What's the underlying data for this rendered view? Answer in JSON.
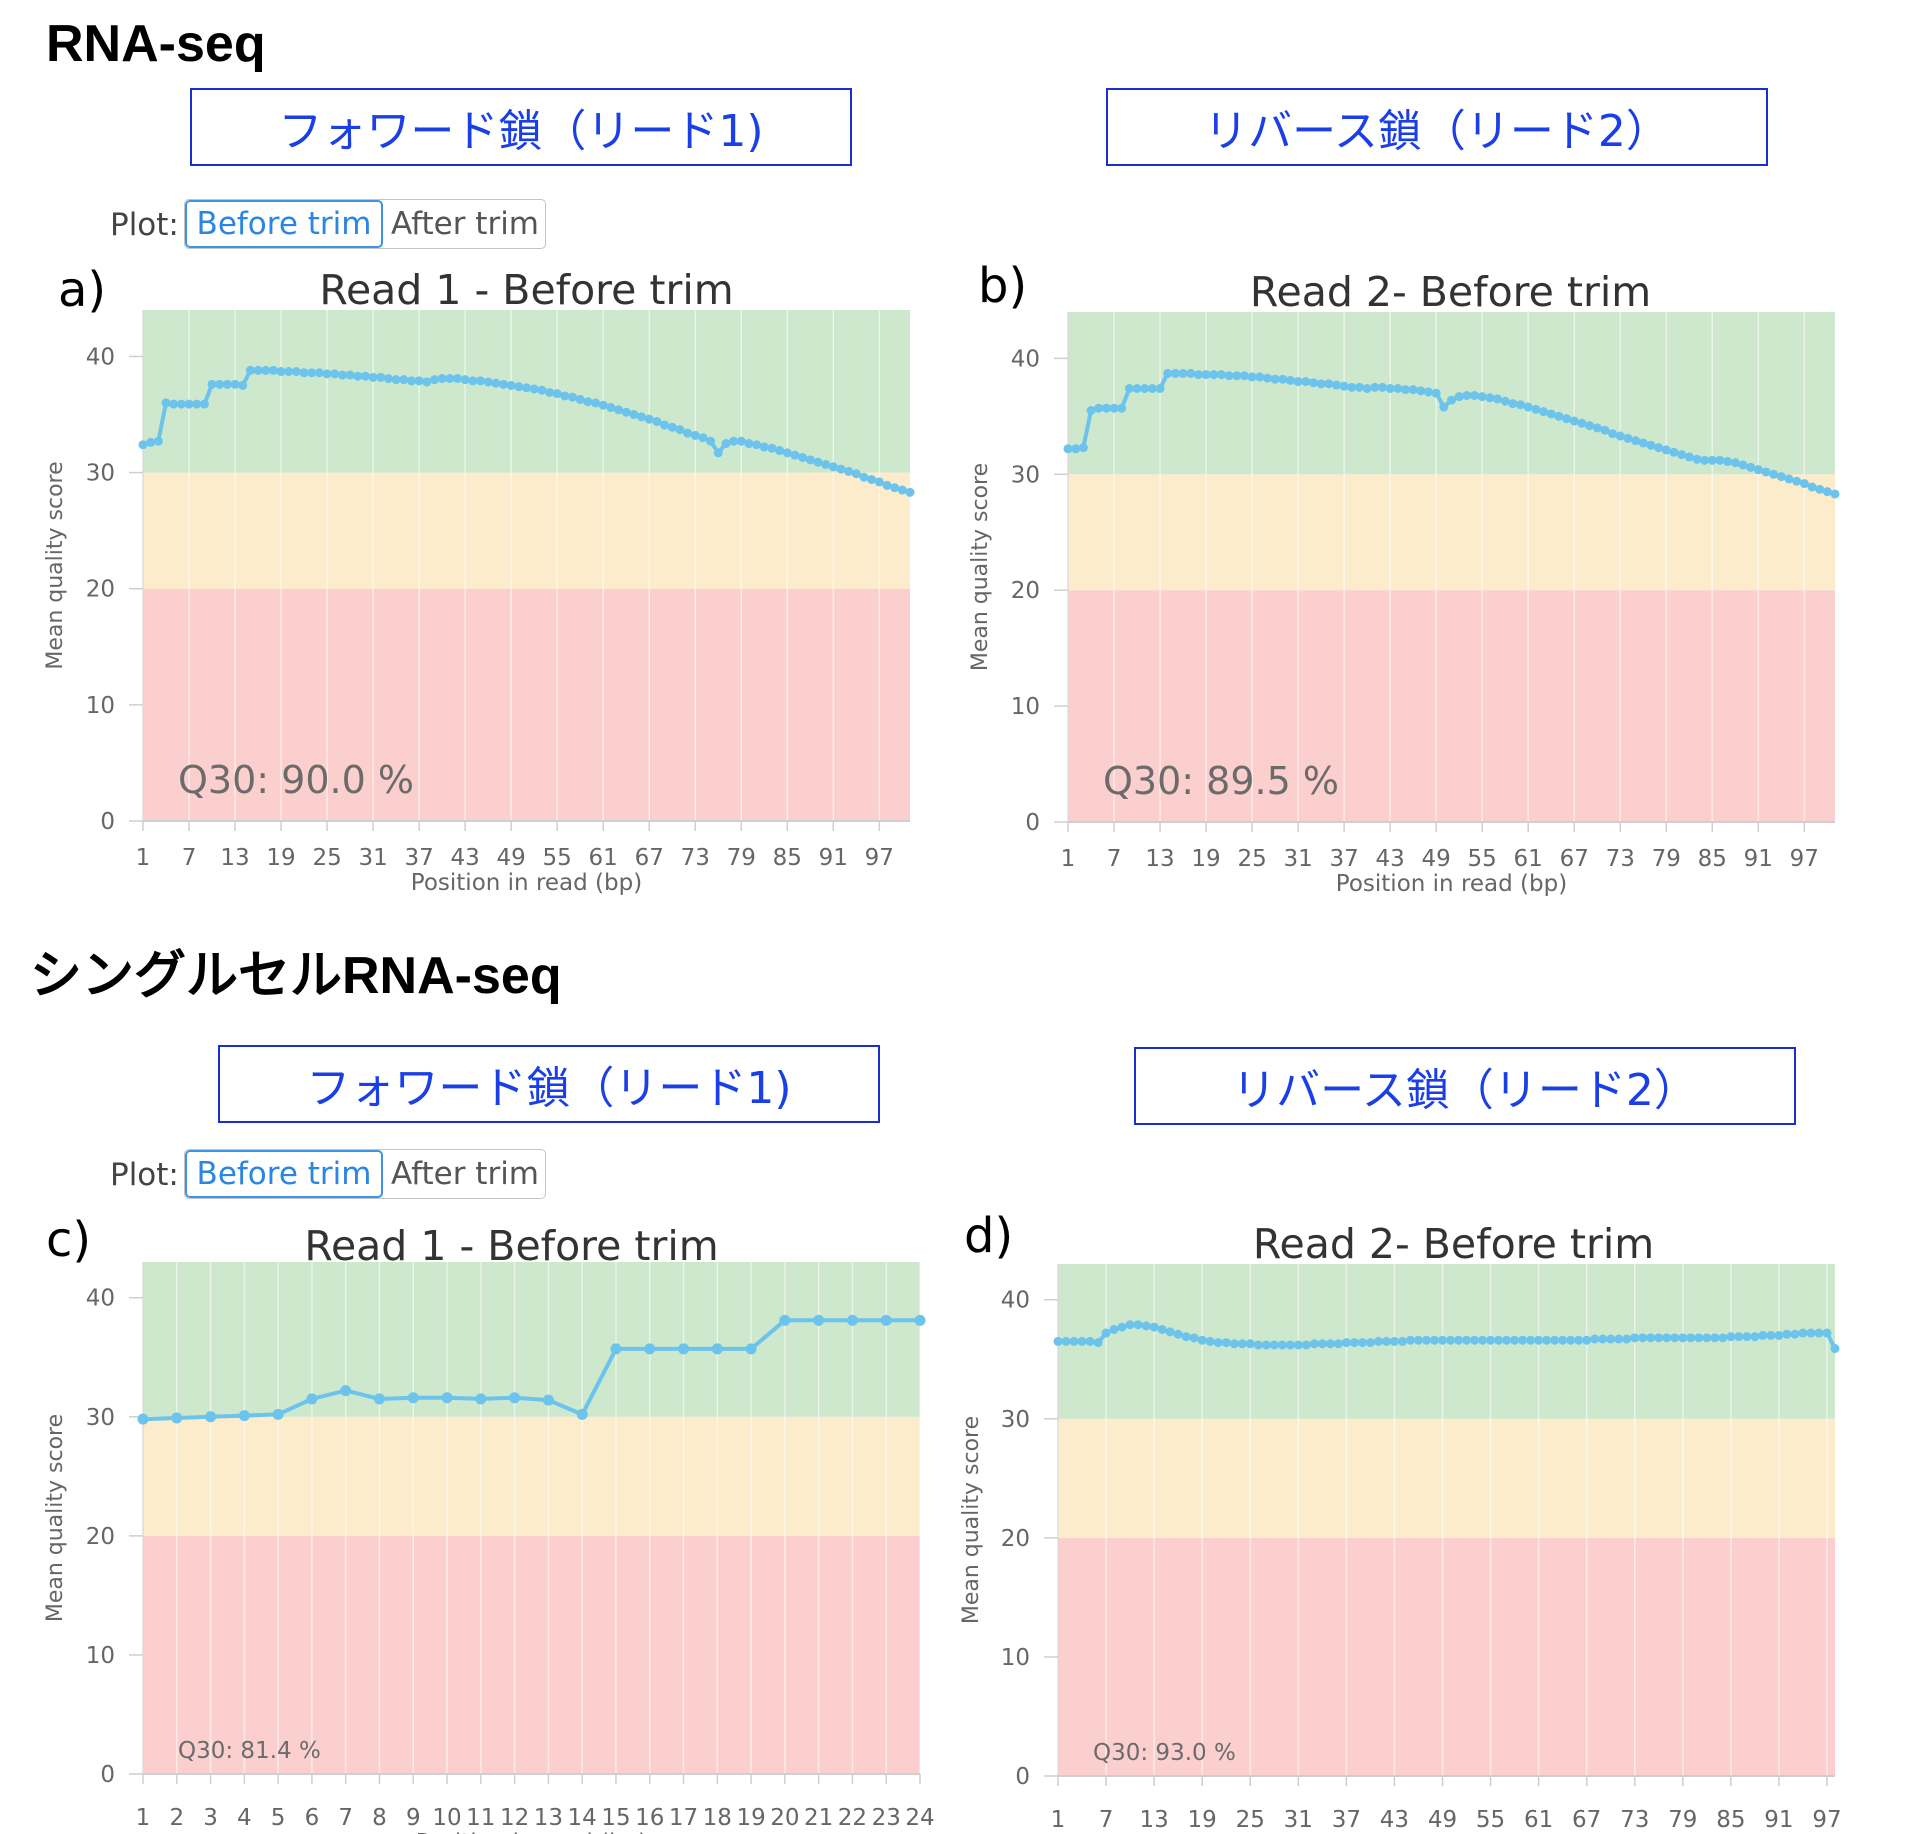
{
  "sections": [
    {
      "title": "RNA-seq",
      "forward_label": "フォワード鎖（リード1)",
      "reverse_label": "リバース鎖（リード2）",
      "plot_label": "Plot:",
      "buttons": [
        "Before trim",
        "After trim"
      ]
    },
    {
      "title": "シングルセルRNA-seq",
      "forward_label": "フォワード鎖（リード1)",
      "reverse_label": "リバース鎖（リード2）",
      "plot_label": "Plot:",
      "buttons": [
        "Before trim",
        "After trim"
      ]
    }
  ],
  "zone_colors": {
    "good": "#cde8cc",
    "warn": "#fdeccb",
    "bad": "#fccfcf",
    "line": "#6cc3ec"
  },
  "chart_data": [
    {
      "panel": "a)",
      "type": "line",
      "title": "Read 1 - Before trim",
      "xlabel": "Position in read (bp)",
      "ylabel": "Mean quality score",
      "ylim": [
        0,
        44
      ],
      "xlim": [
        1,
        101
      ],
      "yticks": [
        0,
        10,
        20,
        30,
        40
      ],
      "xticks": [
        "1",
        "7",
        "13",
        "19",
        "25",
        "31",
        "37",
        "43",
        "49",
        "55",
        "61",
        "67",
        "73",
        "79",
        "85",
        "91",
        "97"
      ],
      "zones": [
        [
          0,
          20,
          "bad"
        ],
        [
          20,
          30,
          "warn"
        ],
        [
          30,
          44,
          "good"
        ]
      ],
      "annotation": "Q30: 90.0 %",
      "annotation_size": "large",
      "series": [
        {
          "values": [
            32.4,
            32.6,
            32.7,
            36.0,
            35.9,
            35.9,
            35.9,
            35.9,
            35.9,
            37.6,
            37.6,
            37.6,
            37.6,
            37.5,
            38.8,
            38.8,
            38.8,
            38.8,
            38.7,
            38.7,
            38.7,
            38.6,
            38.6,
            38.6,
            38.5,
            38.5,
            38.4,
            38.4,
            38.3,
            38.3,
            38.2,
            38.2,
            38.1,
            38.0,
            38.0,
            37.9,
            37.9,
            37.8,
            38.0,
            38.1,
            38.1,
            38.1,
            38.0,
            37.9,
            37.9,
            37.8,
            37.7,
            37.6,
            37.5,
            37.4,
            37.3,
            37.2,
            37.1,
            36.9,
            36.8,
            36.6,
            36.5,
            36.3,
            36.1,
            36.0,
            35.8,
            35.6,
            35.4,
            35.2,
            35.0,
            34.8,
            34.6,
            34.4,
            34.1,
            33.9,
            33.7,
            33.4,
            33.2,
            33.0,
            32.7,
            31.7,
            32.5,
            32.7,
            32.7,
            32.5,
            32.4,
            32.2,
            32.1,
            31.9,
            31.7,
            31.5,
            31.3,
            31.1,
            30.9,
            30.7,
            30.5,
            30.3,
            30.1,
            29.9,
            29.6,
            29.4,
            29.2,
            28.9,
            28.7,
            28.5,
            28.3
          ]
        }
      ]
    },
    {
      "panel": "b)",
      "type": "line",
      "title": "Read 2- Before trim",
      "xlabel": "Position in read (bp)",
      "ylabel": "Mean quality score",
      "ylim": [
        0,
        44
      ],
      "xlim": [
        1,
        101
      ],
      "yticks": [
        0,
        10,
        20,
        30,
        40
      ],
      "xticks": [
        "1",
        "7",
        "13",
        "19",
        "25",
        "31",
        "37",
        "43",
        "49",
        "55",
        "61",
        "67",
        "73",
        "79",
        "85",
        "91",
        "97"
      ],
      "zones": [
        [
          0,
          20,
          "bad"
        ],
        [
          20,
          30,
          "warn"
        ],
        [
          30,
          44,
          "good"
        ]
      ],
      "annotation": "Q30: 89.5 %",
      "annotation_size": "large",
      "series": [
        {
          "values": [
            32.2,
            32.2,
            32.3,
            35.5,
            35.7,
            35.7,
            35.7,
            35.7,
            37.4,
            37.4,
            37.4,
            37.4,
            37.4,
            38.7,
            38.7,
            38.7,
            38.7,
            38.6,
            38.6,
            38.6,
            38.6,
            38.5,
            38.5,
            38.5,
            38.4,
            38.4,
            38.3,
            38.2,
            38.2,
            38.1,
            38.0,
            38.0,
            37.9,
            37.8,
            37.8,
            37.7,
            37.6,
            37.5,
            37.5,
            37.4,
            37.5,
            37.5,
            37.4,
            37.4,
            37.3,
            37.3,
            37.2,
            37.1,
            37.0,
            35.8,
            36.4,
            36.7,
            36.8,
            36.8,
            36.7,
            36.6,
            36.5,
            36.3,
            36.1,
            36.0,
            35.8,
            35.6,
            35.4,
            35.2,
            35.0,
            34.8,
            34.6,
            34.4,
            34.2,
            34.0,
            33.8,
            33.5,
            33.3,
            33.1,
            32.9,
            32.7,
            32.5,
            32.3,
            32.1,
            31.9,
            31.7,
            31.5,
            31.3,
            31.2,
            31.2,
            31.2,
            31.1,
            31.0,
            30.8,
            30.6,
            30.4,
            30.2,
            30.0,
            29.8,
            29.6,
            29.4,
            29.2,
            28.9,
            28.7,
            28.5,
            28.3
          ]
        }
      ]
    },
    {
      "panel": "c)",
      "type": "line",
      "title": "Read 1 - Before trim",
      "xlabel": "Position in read (bp)",
      "ylabel": "Mean quality score",
      "ylim": [
        0,
        43
      ],
      "xlim": [
        1,
        24
      ],
      "yticks": [
        0,
        10,
        20,
        30,
        40
      ],
      "xticks": [
        "1",
        "2",
        "3",
        "4",
        "5",
        "6",
        "7",
        "8",
        "9",
        "10",
        "11",
        "12",
        "13",
        "14",
        "15",
        "16",
        "17",
        "18",
        "19",
        "20",
        "21",
        "22",
        "23",
        "24"
      ],
      "zones": [
        [
          0,
          20,
          "bad"
        ],
        [
          20,
          30,
          "warn"
        ],
        [
          30,
          43,
          "good"
        ]
      ],
      "annotation": "Q30: 81.4 %",
      "annotation_size": "small",
      "series": [
        {
          "values": [
            29.8,
            29.9,
            30.0,
            30.1,
            30.2,
            31.5,
            32.2,
            31.5,
            31.6,
            31.6,
            31.5,
            31.6,
            31.4,
            30.2,
            35.7,
            35.7,
            35.7,
            35.7,
            35.7,
            38.1,
            38.1,
            38.1,
            38.1,
            38.1
          ]
        }
      ]
    },
    {
      "panel": "d)",
      "type": "line",
      "title": "Read 2- Before trim",
      "xlabel": "Position in read (bp)",
      "ylabel": "Mean quality score",
      "ylim": [
        0,
        43
      ],
      "xlim": [
        1,
        98
      ],
      "yticks": [
        0,
        10,
        20,
        30,
        40
      ],
      "xticks": [
        "1",
        "7",
        "13",
        "19",
        "25",
        "31",
        "37",
        "43",
        "49",
        "55",
        "61",
        "67",
        "73",
        "79",
        "85",
        "91",
        "97"
      ],
      "zones": [
        [
          0,
          20,
          "bad"
        ],
        [
          20,
          30,
          "warn"
        ],
        [
          30,
          43,
          "good"
        ]
      ],
      "annotation": "Q30: 93.0 %",
      "annotation_size": "small",
      "series": [
        {
          "values": [
            36.5,
            36.5,
            36.5,
            36.5,
            36.5,
            36.4,
            37.2,
            37.5,
            37.7,
            37.9,
            37.9,
            37.8,
            37.7,
            37.5,
            37.3,
            37.1,
            36.9,
            36.8,
            36.6,
            36.5,
            36.4,
            36.4,
            36.3,
            36.3,
            36.3,
            36.2,
            36.2,
            36.2,
            36.2,
            36.2,
            36.2,
            36.2,
            36.3,
            36.3,
            36.3,
            36.3,
            36.4,
            36.4,
            36.4,
            36.4,
            36.5,
            36.5,
            36.5,
            36.5,
            36.6,
            36.6,
            36.6,
            36.6,
            36.6,
            36.6,
            36.6,
            36.6,
            36.6,
            36.6,
            36.6,
            36.6,
            36.6,
            36.6,
            36.6,
            36.6,
            36.6,
            36.6,
            36.6,
            36.6,
            36.6,
            36.6,
            36.6,
            36.7,
            36.7,
            36.7,
            36.7,
            36.7,
            36.8,
            36.8,
            36.8,
            36.8,
            36.8,
            36.8,
            36.8,
            36.8,
            36.8,
            36.8,
            36.8,
            36.8,
            36.9,
            36.9,
            36.9,
            36.9,
            37.0,
            37.0,
            37.0,
            37.1,
            37.1,
            37.2,
            37.2,
            37.2,
            37.2,
            35.9
          ]
        }
      ]
    }
  ]
}
